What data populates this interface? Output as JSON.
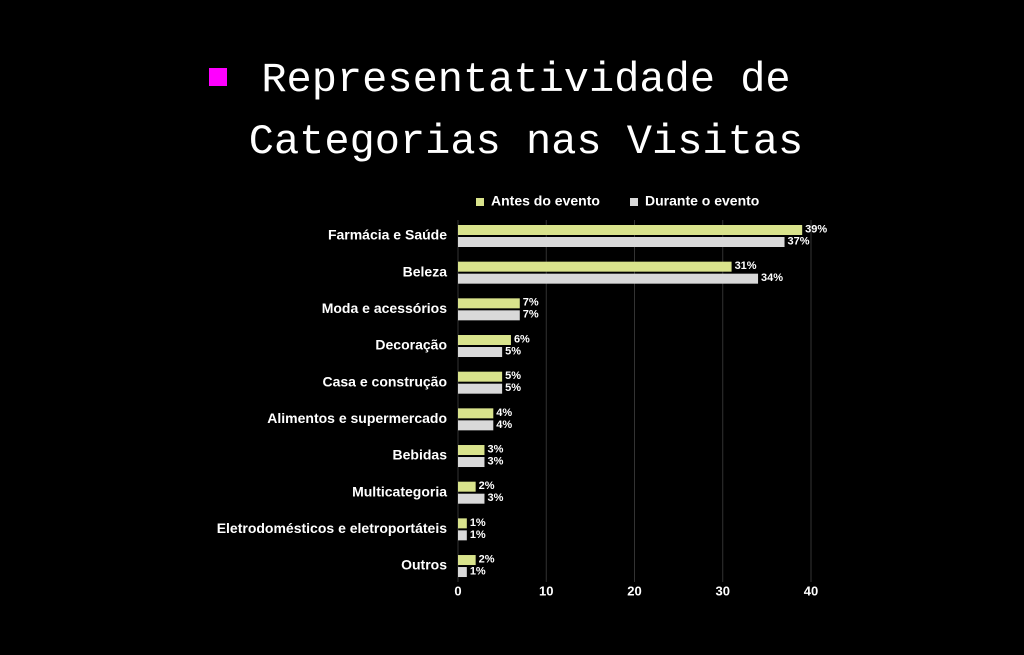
{
  "chart_data": {
    "type": "bar",
    "orientation": "horizontal",
    "title": "Representatividade de Categorias nas Visitas",
    "categories": [
      "Farmácia e Saúde",
      "Beleza",
      "Moda e acessórios",
      "Decoração",
      "Casa e construção",
      "Alimentos e supermercado",
      "Bebidas",
      "Multicategoria",
      "Eletrodomésticos e eletroportáteis",
      "Outros"
    ],
    "series": [
      {
        "name": "Antes do evento",
        "color": "#d9e38c",
        "values": [
          39,
          31,
          7,
          6,
          5,
          4,
          3,
          2,
          1,
          2
        ],
        "value_labels": [
          "39%",
          "31%",
          "7%",
          "6%",
          "5%",
          "4%",
          "3%",
          "2%",
          "1%",
          "2%"
        ]
      },
      {
        "name": "Durante o evento",
        "color": "#d9d9d9",
        "values": [
          37,
          34,
          7,
          5,
          5,
          4,
          3,
          3,
          1,
          1
        ],
        "value_labels": [
          "37%",
          "34%",
          "7%",
          "5%",
          "5%",
          "4%",
          "3%",
          "3%",
          "1%",
          "1%"
        ]
      }
    ],
    "xlim": [
      0,
      40
    ],
    "xticks": [
      0,
      10,
      20,
      30,
      40
    ],
    "grid": true,
    "legend": "top"
  }
}
